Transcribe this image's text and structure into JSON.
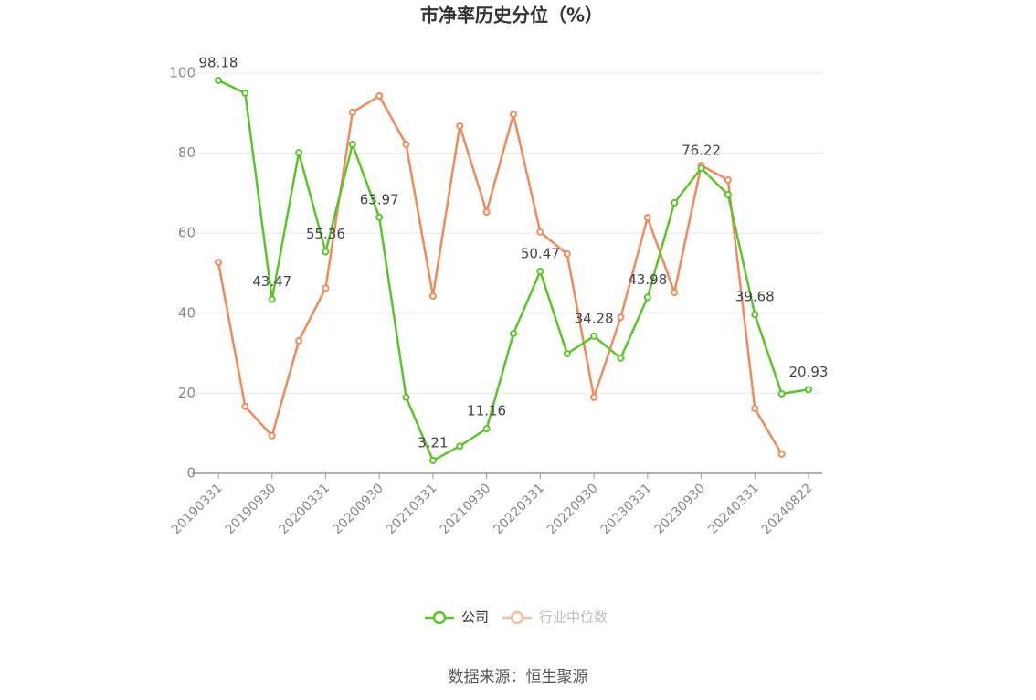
{
  "chart_data": {
    "type": "line",
    "title": "市净率历史分位（%）",
    "categories": [
      "20190331",
      null,
      "20190930",
      null,
      "20200331",
      null,
      "20200930",
      null,
      "20210331",
      null,
      "20210930",
      null,
      "20220331",
      null,
      "20220930",
      null,
      "20230331",
      null,
      "20230930",
      null,
      "20240331",
      null,
      "20240822"
    ],
    "series": [
      {
        "name": "公司",
        "color": "#5cc42b",
        "values": [
          98.18,
          95.0,
          43.47,
          80.1,
          55.36,
          82.2,
          63.97,
          19.0,
          3.21,
          6.8,
          11.16,
          34.9,
          50.47,
          29.9,
          34.28,
          28.8,
          43.98,
          67.6,
          76.22,
          69.6,
          39.68,
          19.9,
          20.93
        ]
      },
      {
        "name": "行业中位数",
        "color": "#ef8a5b",
        "values": [
          52.7,
          16.7,
          9.4,
          33.1,
          46.3,
          90.2,
          94.3,
          82.2,
          44.3,
          86.8,
          65.3,
          89.7,
          60.3,
          54.8,
          19.0,
          39.0,
          63.9,
          45.2,
          76.9,
          73.3,
          16.2,
          4.8,
          null
        ]
      }
    ],
    "ylim": [
      0,
      100
    ],
    "yticks": [
      0,
      20,
      40,
      60,
      80,
      100
    ],
    "grid": true,
    "source": "数据来源：恒生聚源"
  }
}
